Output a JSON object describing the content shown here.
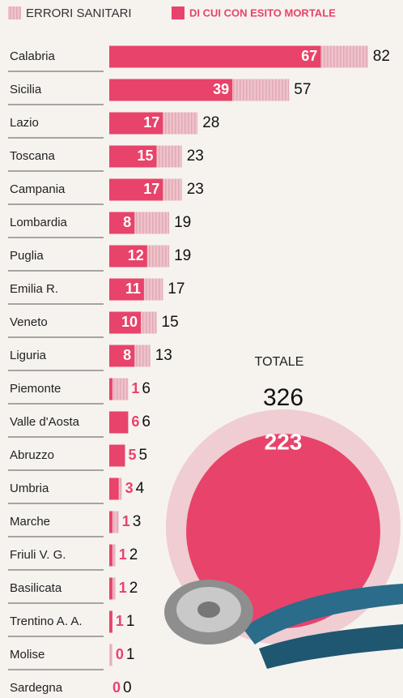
{
  "chart_data": {
    "type": "bar",
    "orientation": "horizontal",
    "categories": [
      "Calabria",
      "Sicilia",
      "Lazio",
      "Toscana",
      "Campania",
      "Lombardia",
      "Puglia",
      "Emilia R.",
      "Veneto",
      "Liguria",
      "Piemonte",
      "Valle d'Aosta",
      "Abruzzo",
      "Umbria",
      "Marche",
      "Friuli V. G.",
      "Basilicata",
      "Trentino A. A.",
      "Molise",
      "Sardegna"
    ],
    "series": [
      {
        "name": "ERRORI SANITARI",
        "color": "#eec3cb",
        "values": [
          82,
          57,
          28,
          23,
          23,
          19,
          19,
          17,
          15,
          13,
          6,
          6,
          5,
          4,
          3,
          2,
          2,
          1,
          1,
          0
        ]
      },
      {
        "name": "DI CUI CON ESITO MORTALE",
        "color": "#e8436a",
        "values": [
          67,
          39,
          17,
          15,
          17,
          8,
          12,
          11,
          10,
          8,
          1,
          6,
          5,
          3,
          1,
          1,
          1,
          1,
          0,
          0
        ]
      }
    ],
    "totals": {
      "label": "TOTALE",
      "values": [
        326,
        223
      ]
    }
  }
}
